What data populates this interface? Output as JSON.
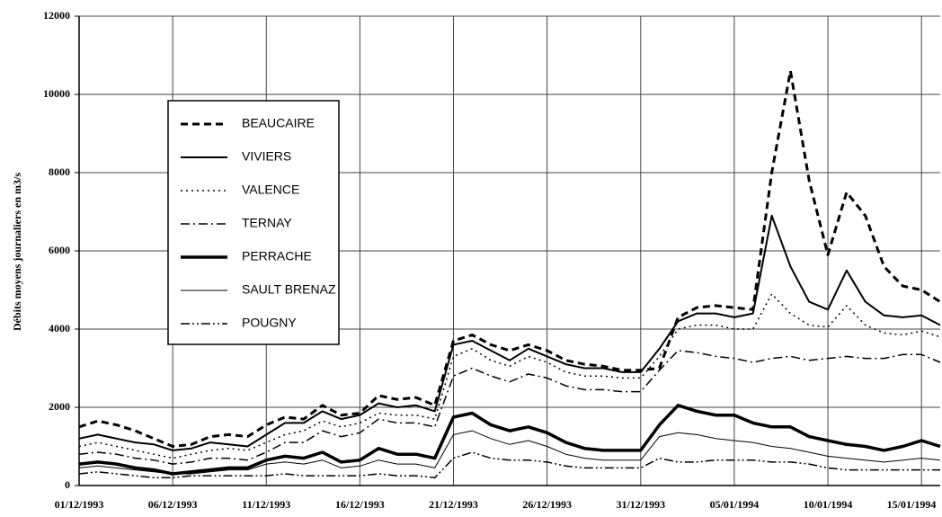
{
  "chart_data": {
    "type": "line",
    "ylabel": "Débits moyens journaliers en  m3/s",
    "categories": [
      "01/12/1993",
      null,
      null,
      null,
      null,
      "06/12/1993",
      null,
      null,
      null,
      null,
      "11/12/1993",
      null,
      null,
      null,
      null,
      "16/12/1993",
      null,
      null,
      null,
      null,
      "21/12/1993",
      null,
      null,
      null,
      null,
      "26/12/1993",
      null,
      null,
      null,
      null,
      "31/12/1993",
      null,
      null,
      null,
      null,
      "05/01/1994",
      null,
      null,
      null,
      null,
      "10/01/1994",
      null,
      null,
      null,
      null,
      "15/01/1994",
      null
    ],
    "ylim": [
      0,
      12000
    ],
    "yticks": [
      0,
      2000,
      4000,
      6000,
      8000,
      10000,
      12000
    ],
    "grid": true,
    "legend": "upper left",
    "series": [
      {
        "name": "BEAUCAIRE",
        "color": "#000000",
        "style": "dashed",
        "values": [
          1500,
          1650,
          1550,
          1400,
          1200,
          1000,
          1050,
          1250,
          1300,
          1250,
          1550,
          1750,
          1700,
          2050,
          1800,
          1850,
          2300,
          2200,
          2250,
          2050,
          3700,
          3850,
          3600,
          3450,
          3600,
          3450,
          3200,
          3100,
          3050,
          2950,
          2950,
          3000,
          4300,
          4550,
          4600,
          4550,
          4500,
          8000,
          10600,
          7800,
          5900,
          7500,
          6900,
          5600,
          5100,
          5000,
          4700
        ]
      },
      {
        "name": "VIVIERS",
        "color": "#000000",
        "style": "solid",
        "values": [
          1200,
          1300,
          1200,
          1100,
          1050,
          900,
          950,
          1100,
          1050,
          1000,
          1300,
          1600,
          1600,
          1900,
          1700,
          1800,
          2100,
          2000,
          2050,
          1900,
          3600,
          3700,
          3450,
          3200,
          3500,
          3300,
          3100,
          3000,
          3000,
          2900,
          2900,
          3500,
          4200,
          4400,
          4400,
          4300,
          4400,
          6900,
          5600,
          4700,
          4500,
          5500,
          4700,
          4350,
          4300,
          4350,
          4100
        ]
      },
      {
        "name": "VALENCE",
        "color": "#000000",
        "style": "dotted",
        "values": [
          1000,
          1100,
          1000,
          900,
          800,
          700,
          800,
          900,
          950,
          900,
          1100,
          1300,
          1400,
          1650,
          1500,
          1600,
          1850,
          1800,
          1800,
          1700,
          3300,
          3500,
          3200,
          3050,
          3300,
          3150,
          2900,
          2800,
          2800,
          2750,
          2750,
          3300,
          4000,
          4100,
          4100,
          4000,
          4000,
          4900,
          4400,
          4100,
          4050,
          4600,
          4100,
          3900,
          3850,
          3950,
          3800
        ]
      },
      {
        "name": "TERNAY",
        "color": "#000000",
        "style": "dashdot",
        "values": [
          800,
          850,
          800,
          700,
          650,
          550,
          600,
          700,
          700,
          650,
          850,
          1100,
          1100,
          1400,
          1250,
          1350,
          1700,
          1600,
          1600,
          1500,
          2800,
          3000,
          2800,
          2650,
          2850,
          2750,
          2550,
          2450,
          2450,
          2400,
          2400,
          2950,
          3450,
          3400,
          3300,
          3250,
          3150,
          3250,
          3300,
          3200,
          3250,
          3300,
          3250,
          3250,
          3350,
          3350,
          3150
        ]
      },
      {
        "name": "PERRACHE",
        "color": "#000000",
        "style": "bold",
        "values": [
          550,
          600,
          550,
          450,
          400,
          300,
          350,
          400,
          450,
          450,
          650,
          750,
          700,
          850,
          600,
          650,
          950,
          800,
          800,
          700,
          1750,
          1850,
          1550,
          1400,
          1500,
          1350,
          1100,
          950,
          900,
          900,
          900,
          1550,
          2050,
          1900,
          1800,
          1800,
          1600,
          1500,
          1500,
          1250,
          1150,
          1050,
          1000,
          900,
          1000,
          1150,
          1000
        ]
      },
      {
        "name": "SAULT BRENAZ",
        "color": "#000000",
        "style": "thin",
        "values": [
          450,
          500,
          450,
          400,
          350,
          300,
          300,
          350,
          400,
          400,
          550,
          600,
          550,
          650,
          450,
          500,
          650,
          550,
          550,
          450,
          1300,
          1400,
          1200,
          1050,
          1150,
          1000,
          800,
          700,
          650,
          650,
          650,
          1250,
          1350,
          1300,
          1200,
          1150,
          1100,
          1000,
          950,
          850,
          750,
          700,
          650,
          600,
          650,
          700,
          650
        ]
      },
      {
        "name": "POUGNY",
        "color": "#000000",
        "style": "dashdotdot",
        "values": [
          300,
          350,
          300,
          250,
          200,
          200,
          250,
          250,
          250,
          250,
          250,
          300,
          250,
          250,
          250,
          250,
          300,
          250,
          250,
          200,
          700,
          850,
          700,
          650,
          650,
          600,
          500,
          450,
          450,
          450,
          450,
          700,
          600,
          600,
          650,
          650,
          650,
          600,
          600,
          550,
          450,
          400,
          400,
          400,
          400,
          400,
          400
        ]
      }
    ]
  }
}
